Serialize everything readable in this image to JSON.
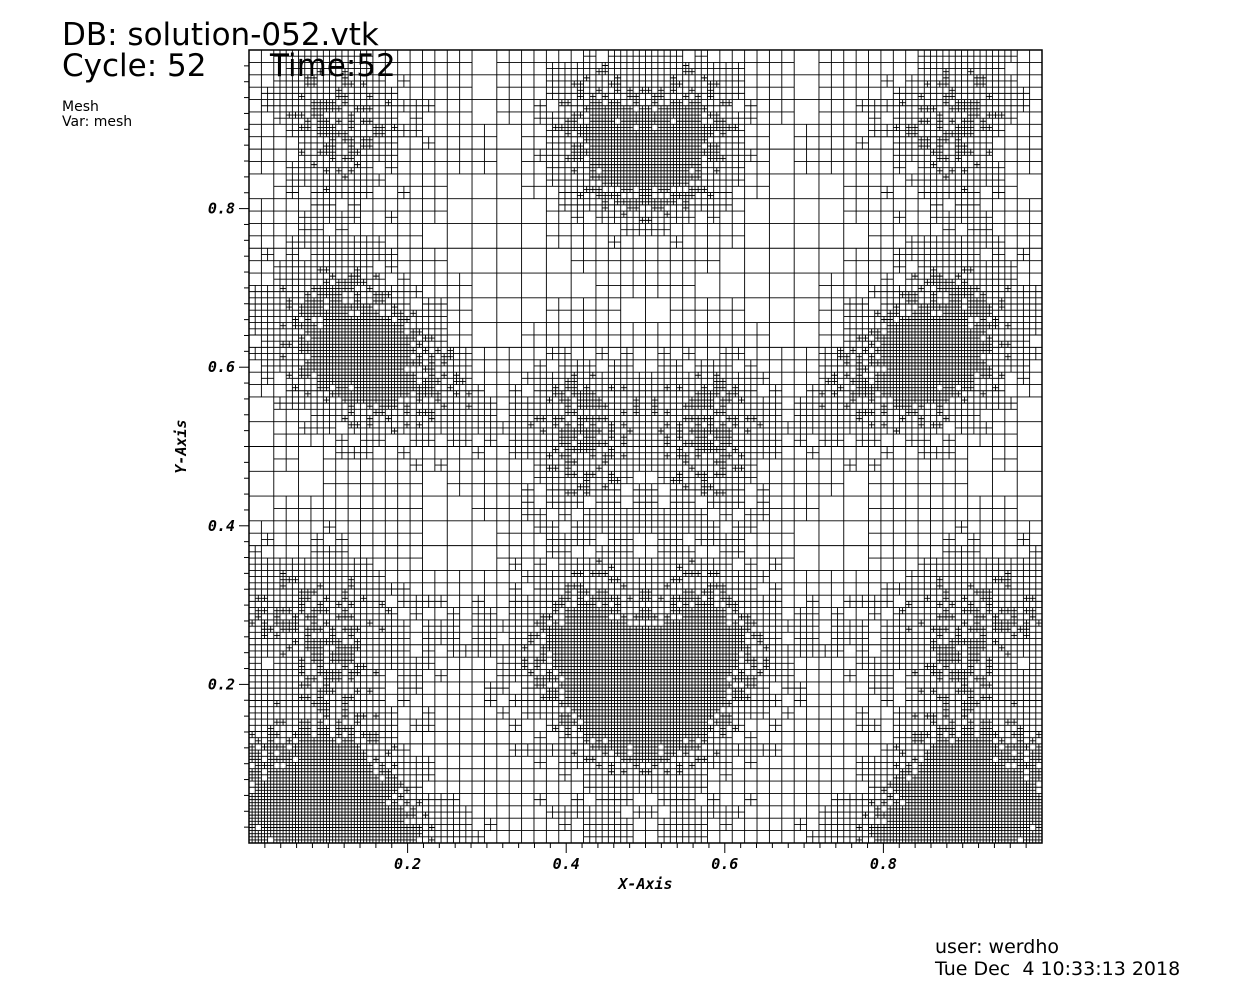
{
  "header": {
    "db": "DB: solution-052.vtk",
    "cycle": "Cycle: 52",
    "time": "Time:52",
    "plot_type": "Mesh",
    "variable": "Var: mesh"
  },
  "footer": {
    "user": "user: werdho",
    "timestamp": "Tue Dec  4 10:33:13 2018"
  },
  "chart_data": {
    "type": "mesh",
    "xlabel": "X-Axis",
    "ylabel": "Y-Axis",
    "xlim": [
      0,
      1
    ],
    "ylim": [
      0,
      1
    ],
    "x_ticks": [
      0.2,
      0.4,
      0.6,
      0.8
    ],
    "y_ticks": [
      0.2,
      0.4,
      0.6,
      0.8
    ],
    "x_tick_labels": [
      "0.2",
      "0.4",
      "0.6",
      "0.8"
    ],
    "y_tick_labels": [
      "0.2",
      "0.4",
      "0.6",
      "0.8"
    ],
    "base_grid": 32,
    "max_refinement_level": 3,
    "mesh_color": "#000000"
  }
}
